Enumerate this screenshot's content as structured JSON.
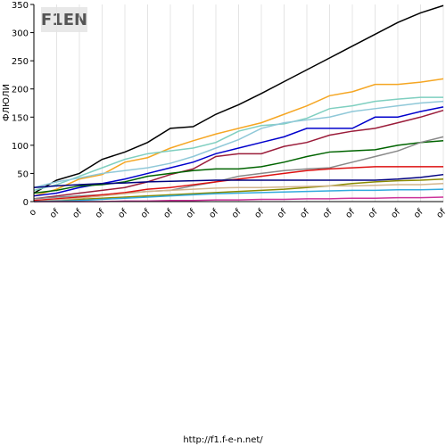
{
  "chart_data": {
    "type": "line",
    "logo": "F1EN",
    "y_label": "ФЛЮЛИ",
    "footer": "http://f1.f-e-n.net/",
    "categories": [
      "o",
      "of",
      "of",
      "of",
      "of",
      "of",
      "of",
      "of",
      "of",
      "of",
      "of",
      "of",
      "of",
      "of",
      "of",
      "of",
      "of",
      "of",
      "of"
    ],
    "ylim": [
      0,
      350
    ],
    "yticks": [
      0,
      50,
      100,
      150,
      200,
      250,
      300,
      350
    ],
    "grid_x": true,
    "series": [
      {
        "color": "#000000",
        "values": [
          15,
          38,
          50,
          75,
          88,
          105,
          130,
          133,
          155,
          172,
          192,
          213,
          234,
          255,
          276,
          297,
          318,
          335,
          348
        ]
      },
      {
        "color": "#f5a623",
        "values": [
          10,
          22,
          40,
          48,
          70,
          78,
          95,
          108,
          120,
          130,
          140,
          155,
          170,
          188,
          195,
          208,
          208,
          212,
          218
        ]
      },
      {
        "color": "#7fcfc0",
        "values": [
          20,
          30,
          45,
          60,
          75,
          85,
          90,
          95,
          105,
          125,
          135,
          138,
          148,
          165,
          170,
          178,
          182,
          185,
          185
        ]
      },
      {
        "color": "#0000cc",
        "values": [
          10,
          15,
          25,
          32,
          40,
          50,
          60,
          70,
          85,
          95,
          105,
          115,
          130,
          130,
          130,
          150,
          150,
          160,
          168
        ]
      },
      {
        "color": "#9b1c3a",
        "values": [
          5,
          10,
          15,
          20,
          25,
          35,
          48,
          58,
          80,
          85,
          85,
          98,
          105,
          118,
          125,
          130,
          140,
          150,
          162
        ]
      },
      {
        "color": "#8fc8d8",
        "values": [
          25,
          35,
          42,
          50,
          55,
          60,
          68,
          80,
          95,
          110,
          130,
          140,
          145,
          150,
          160,
          165,
          170,
          175,
          178
        ]
      },
      {
        "color": "#006400",
        "values": [
          15,
          20,
          28,
          30,
          35,
          45,
          50,
          55,
          58,
          58,
          62,
          70,
          80,
          88,
          90,
          92,
          100,
          105,
          108
        ]
      },
      {
        "color": "#888888",
        "values": [
          5,
          8,
          10,
          12,
          15,
          18,
          20,
          28,
          35,
          45,
          50,
          55,
          58,
          60,
          70,
          80,
          90,
          105,
          115
        ]
      },
      {
        "color": "#dd1111",
        "values": [
          2,
          5,
          8,
          12,
          16,
          22,
          25,
          30,
          35,
          40,
          45,
          50,
          55,
          58,
          60,
          62,
          62,
          62,
          62
        ]
      },
      {
        "color": "#000080",
        "values": [
          25,
          28,
          30,
          32,
          33,
          35,
          36,
          37,
          38,
          38,
          38,
          38,
          38,
          38,
          38,
          38,
          40,
          43,
          48
        ]
      },
      {
        "color": "#8a8a00",
        "values": [
          0,
          2,
          4,
          6,
          8,
          10,
          12,
          14,
          16,
          18,
          20,
          22,
          25,
          28,
          32,
          35,
          37,
          38,
          40
        ]
      },
      {
        "color": "#d2b48c",
        "values": [
          0,
          3,
          6,
          10,
          14,
          18,
          20,
          22,
          24,
          25,
          25,
          26,
          27,
          28,
          28,
          29,
          30,
          30,
          32
        ]
      },
      {
        "color": "#33aadd",
        "values": [
          0,
          1,
          2,
          4,
          6,
          8,
          10,
          12,
          14,
          15,
          16,
          17,
          18,
          19,
          20,
          20,
          21,
          21,
          22
        ]
      },
      {
        "color": "#cc3399",
        "values": [
          0,
          0,
          0,
          0,
          1,
          1,
          2,
          2,
          3,
          3,
          4,
          4,
          5,
          5,
          6,
          6,
          7,
          7,
          8
        ]
      }
    ]
  }
}
